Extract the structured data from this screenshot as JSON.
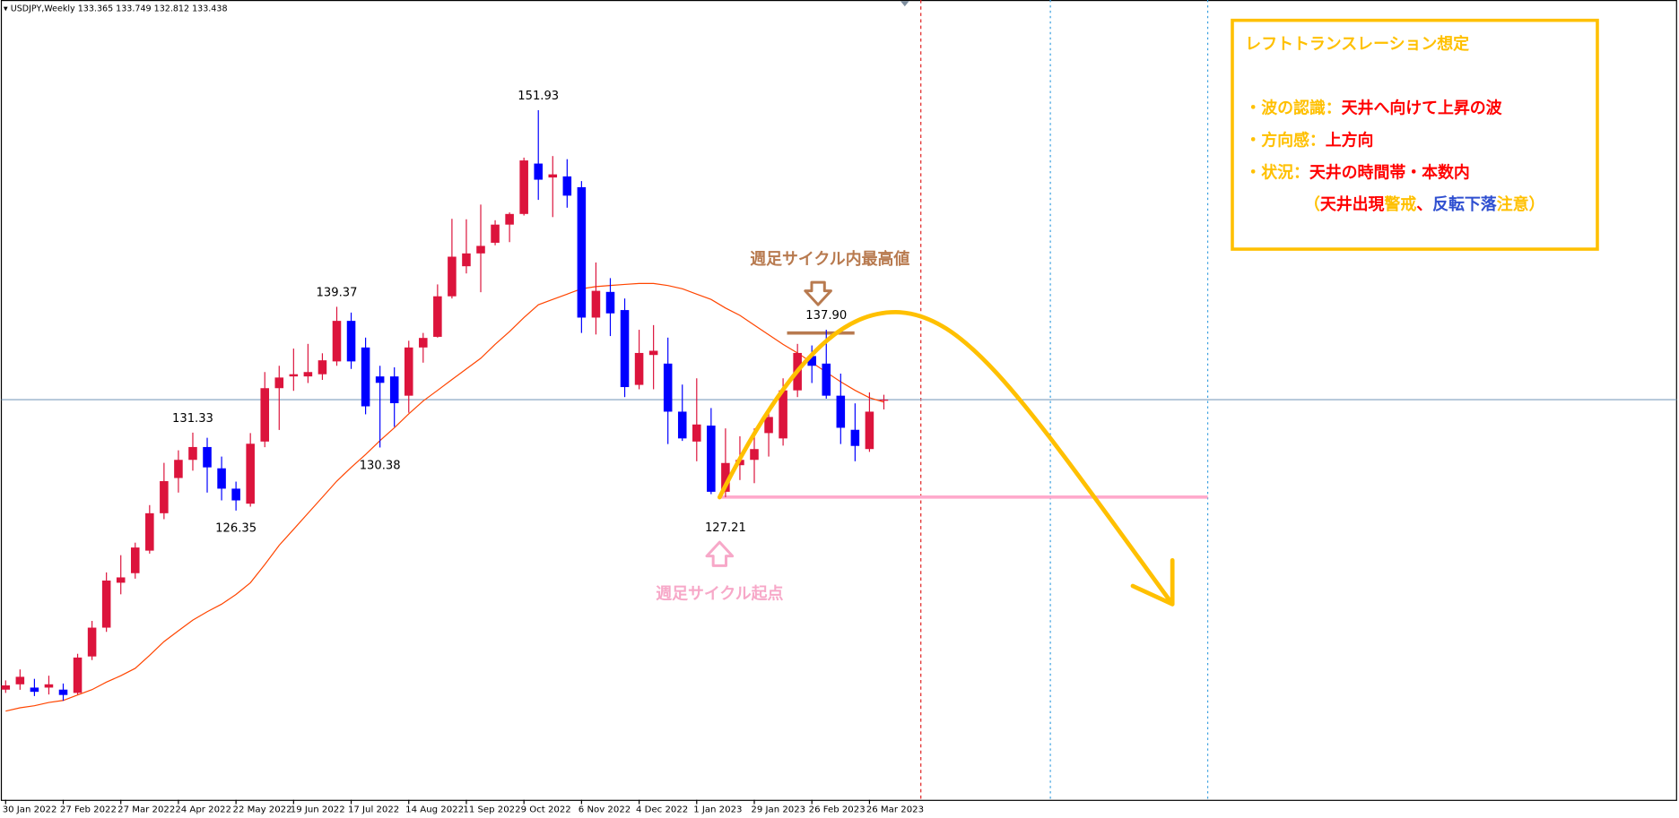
{
  "chart_data": {
    "type": "candlestick",
    "symbol": "USDJPY,Weekly",
    "categories": [
      "30 Jan 2022",
      null,
      null,
      null,
      "27 Feb 2022",
      null,
      null,
      null,
      "27 Mar 2022",
      null,
      null,
      null,
      "24 Apr 2022",
      null,
      null,
      null,
      "22 May 2022",
      null,
      null,
      null,
      "19 Jun 2022",
      null,
      null,
      null,
      "17 Jul 2022",
      null,
      null,
      null,
      "14 Aug 2022",
      null,
      null,
      null,
      "11 Sep 2022",
      null,
      null,
      null,
      "9 Oct 2022",
      null,
      null,
      null,
      "6 Nov 2022",
      null,
      null,
      null,
      "4 Dec 2022",
      null,
      null,
      null,
      "1 Jan 2023",
      null,
      null,
      null,
      "29 Jan 2023",
      null,
      null,
      null,
      "26 Feb 2023",
      null,
      null,
      null,
      "26 Mar 2023",
      null
    ],
    "open": [
      114.91,
      115.25,
      115.04,
      115.04,
      114.91,
      114.7,
      117.03,
      118.87,
      121.74,
      122.35,
      123.79,
      126.18,
      128.43,
      129.59,
      130.41,
      129.05,
      127.75,
      126.79,
      130.76,
      134.17,
      134.92,
      134.92,
      135.06,
      135.88,
      138.47,
      136.77,
      134.92,
      134.92,
      133.69,
      136.77,
      137.45,
      140.04,
      141.96,
      142.78,
      143.46,
      144.62,
      145.3,
      148.52,
      147.63,
      147.7,
      147.01,
      138.68,
      140.32,
      139.16,
      134.38,
      136.29,
      135.74,
      132.67,
      130.76,
      131.78,
      127.55,
      129.25,
      129.59,
      131.3,
      130.96,
      134.03,
      136.22,
      135.74,
      133.69,
      131.51,
      130.28,
      133.365
    ],
    "high": [
      115.5,
      116.2,
      115.6,
      115.8,
      115.3,
      117.2,
      119.3,
      122.4,
      123.5,
      124.3,
      126.7,
      129.4,
      130.2,
      131.33,
      131.0,
      129.8,
      128.2,
      131.3,
      135.2,
      135.6,
      136.7,
      137.0,
      136.4,
      139.37,
      139.0,
      137.4,
      135.6,
      135.5,
      137.2,
      137.7,
      140.8,
      144.99,
      144.96,
      145.9,
      144.9,
      145.4,
      148.9,
      151.93,
      149.0,
      148.8,
      147.4,
      142.2,
      141.2,
      139.9,
      137.9,
      138.2,
      137.4,
      134.4,
      134.8,
      132.9,
      131.6,
      131.1,
      131.6,
      132.9,
      134.8,
      137.0,
      136.9,
      137.9,
      135.1,
      133.2,
      133.9,
      133.749
    ],
    "low": [
      114.7,
      114.9,
      114.5,
      114.6,
      114.2,
      114.6,
      116.8,
      118.6,
      121.0,
      122.0,
      123.6,
      125.8,
      127.5,
      128.9,
      127.5,
      127.0,
      126.35,
      126.6,
      130.4,
      131.5,
      134.0,
      134.5,
      134.7,
      135.6,
      135.4,
      132.5,
      130.38,
      131.7,
      132.6,
      135.8,
      137.4,
      139.9,
      141.5,
      140.3,
      143.3,
      143.5,
      145.2,
      146.2,
      145.1,
      145.7,
      137.7,
      137.6,
      137.5,
      133.6,
      134.1,
      134.1,
      130.6,
      130.8,
      129.5,
      127.4,
      127.21,
      128.3,
      128.1,
      129.8,
      130.5,
      133.6,
      134.5,
      133.5,
      130.6,
      129.5,
      130.1,
      132.812
    ],
    "close": [
      115.18,
      115.73,
      114.77,
      115.25,
      114.57,
      116.96,
      118.87,
      121.88,
      122.08,
      123.99,
      126.18,
      128.23,
      129.59,
      130.41,
      129.11,
      127.75,
      127.0,
      130.62,
      134.17,
      134.85,
      135.06,
      135.2,
      135.95,
      138.47,
      135.88,
      133.01,
      134.51,
      133.21,
      136.77,
      137.38,
      140.04,
      142.57,
      142.78,
      143.26,
      144.62,
      145.3,
      148.72,
      147.49,
      147.83,
      146.47,
      138.68,
      140.39,
      138.95,
      134.24,
      136.42,
      136.56,
      132.67,
      130.96,
      131.85,
      127.55,
      129.39,
      129.59,
      130.28,
      132.33,
      134.03,
      136.42,
      135.6,
      133.69,
      131.64,
      130.48,
      132.67,
      133.438
    ],
    "up_color": "#dc143c",
    "down_color": "#0000ff",
    "ma": {
      "color": "#ff4500",
      "values": [
        113.54,
        113.75,
        113.88,
        114.09,
        114.22,
        114.57,
        114.91,
        115.39,
        115.8,
        116.27,
        117.1,
        117.98,
        118.67,
        119.35,
        119.89,
        120.37,
        120.99,
        121.74,
        122.9,
        124.13,
        125.15,
        126.18,
        127.2,
        128.23,
        129.11,
        129.93,
        130.82,
        131.64,
        132.53,
        133.35,
        134.03,
        134.72,
        135.4,
        136.08,
        136.97,
        137.79,
        138.68,
        139.5,
        139.84,
        140.18,
        140.52,
        140.66,
        140.73,
        140.8,
        140.86,
        140.86,
        140.73,
        140.52,
        140.18,
        139.84,
        139.29,
        138.82,
        138.2,
        137.58,
        136.97,
        136.42,
        135.81,
        135.19,
        134.58,
        134.03,
        133.56,
        133.28
      ]
    },
    "ylim": [
      107.87,
      158.97
    ],
    "price_labels": [
      {
        "index": 37,
        "value": 151.93,
        "label": "151.93"
      },
      {
        "index": 23,
        "value": 139.37,
        "label": "139.37"
      },
      {
        "index": 13,
        "value": 131.33,
        "label": "131.33"
      },
      {
        "index": 26,
        "value": 130.38,
        "label": "130.38"
      },
      {
        "index": 16,
        "value": 126.35,
        "label": "126.35"
      },
      {
        "index": 50,
        "value": 127.21,
        "label": "127.21"
      },
      {
        "index": 57,
        "value": 137.9,
        "label": "137.90"
      }
    ],
    "cycle_high_note": "週足サイクル内最高値",
    "cycle_start_note": "週足サイクル起点",
    "info_box": {
      "title": "レフトトランスレーション想定",
      "lines": [
        [
          {
            "text": "・波の認識：",
            "color": "#ffc000"
          },
          {
            "text": "天井へ向けて上昇の波",
            "color": "#ff0000"
          }
        ],
        [
          {
            "text": "・方向感：",
            "color": "#ffc000"
          },
          {
            "text": "上方向",
            "color": "#ff0000"
          }
        ],
        [
          {
            "text": "・状況：",
            "color": "#ffc000"
          },
          {
            "text": "天井の時間帯・本数内",
            "color": "#ff0000"
          }
        ],
        [
          {
            "text": "（",
            "color": "#ffc000"
          },
          {
            "text": "天井出現",
            "color": "#ff0000"
          },
          {
            "text": "警戒",
            "color": "#ffc000"
          },
          {
            "text": "、",
            "color": "#ff0000"
          },
          {
            "text": "反転下落",
            "color": "#2f4fd0"
          },
          {
            "text": "注意",
            "color": "#ffc000"
          },
          {
            "text": "）",
            "color": "#ffc000"
          }
        ]
      ]
    }
  }
}
